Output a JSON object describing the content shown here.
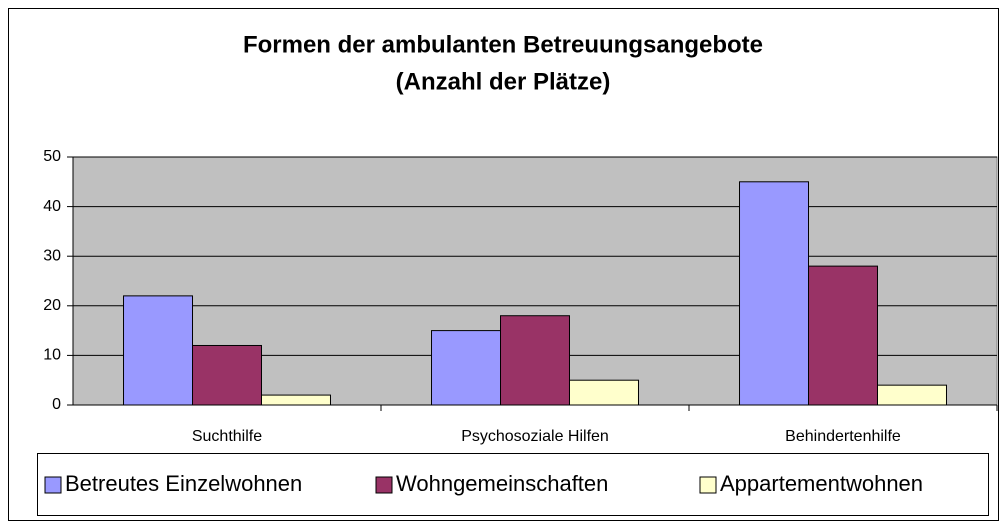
{
  "chart_data": {
    "type": "bar",
    "title": [
      "Formen der ambulanten Betreuungsangebote",
      "(Anzahl der Plätze)"
    ],
    "categories": [
      "Suchthilfe",
      "Psychosoziale Hilfen",
      "Behindertenhilfe"
    ],
    "series": [
      {
        "name": "Betreutes Einzelwohnen",
        "color": "#9999ff",
        "values": [
          22,
          15,
          45
        ]
      },
      {
        "name": "Wohngemeinschaften",
        "color": "#993366",
        "values": [
          12,
          18,
          28
        ]
      },
      {
        "name": "Appartementwohnen",
        "color": "#ffffcc",
        "values": [
          2,
          5,
          4
        ]
      }
    ],
    "ylim": [
      0,
      50
    ],
    "yticks": [
      0,
      10,
      20,
      30,
      40,
      50
    ],
    "grid": true,
    "legend": "bottom"
  }
}
